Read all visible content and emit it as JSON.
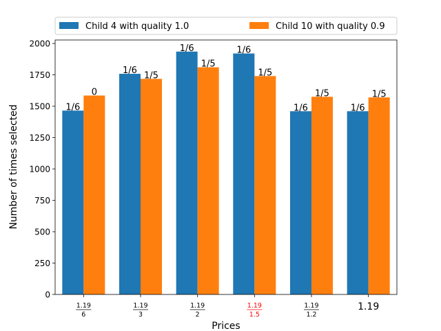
{
  "chart_data": {
    "type": "bar",
    "categories": [
      {
        "num": "1.19",
        "den": "6"
      },
      {
        "num": "1.19",
        "den": "3"
      },
      {
        "num": "1.19",
        "den": "2"
      },
      {
        "num": "1.19",
        "den": "1.5"
      },
      {
        "num": "1.19",
        "den": "1.2"
      },
      {
        "plain": "1.19"
      }
    ],
    "highlight_category_index": 3,
    "series": [
      {
        "name": "Child 4 with quality 1.0",
        "color": "#1f77b4",
        "values": [
          1465,
          1758,
          1935,
          1920,
          1460,
          1460
        ],
        "labels": [
          "1/6",
          "1/6",
          "1/6",
          "1/6",
          "1/6",
          "1/6"
        ]
      },
      {
        "name": "Child 10 with quality 0.9",
        "color": "#ff7f0e",
        "values": [
          1585,
          1718,
          1810,
          1740,
          1575,
          1570
        ],
        "labels": [
          "0",
          "1/5",
          "1/5",
          "1/5",
          "1/5",
          "1/5"
        ]
      }
    ],
    "xlabel": "Prices",
    "ylabel": "Number of times selected",
    "ylim": [
      0,
      2000
    ],
    "yticks": [
      0,
      250,
      500,
      750,
      1000,
      1250,
      1500,
      1750,
      2000
    ],
    "legend_placement": "top",
    "grid": false
  },
  "colors": {
    "highlight_tick": "#ff0000",
    "axis": "#000000"
  }
}
